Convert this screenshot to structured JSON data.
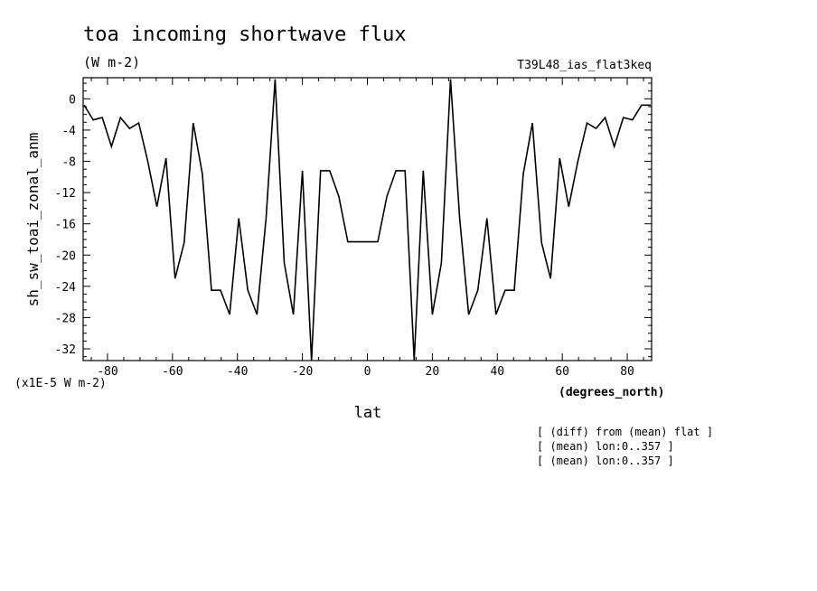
{
  "chart_data": {
    "type": "line",
    "title": "toa incoming shortwave flux",
    "units": "(W m-2)",
    "experiment": "T39L48_ias_flat3keq",
    "ylabel": "sh_sw_toai_zonal_anm",
    "yscale_note": "(x1E-5 W m-2)",
    "xlabel": "lat",
    "xunits": "(degrees_north)",
    "xlim": [
      -87.5,
      87.5
    ],
    "ylim": [
      -33.5,
      2.7
    ],
    "xticks": [
      -80,
      -60,
      -40,
      -20,
      0,
      20,
      40,
      60,
      80
    ],
    "yticks": [
      0,
      -4,
      -8,
      -12,
      -16,
      -20,
      -24,
      -28,
      -32
    ],
    "xtick_labels": [
      "-80",
      "-60",
      "-40",
      "-20",
      "0",
      "20",
      "40",
      "60",
      "80"
    ],
    "ytick_labels": [
      "0",
      "-4",
      "-8",
      "-12",
      "-16",
      "-20",
      "-24",
      "-28",
      "-32"
    ],
    "series": [
      {
        "x": [
          -87.2,
          -84.4,
          -81.6,
          -78.8,
          -76.0,
          -73.2,
          -70.4,
          -67.6,
          -64.8,
          -62.0,
          -59.2,
          -56.4,
          -53.6,
          -50.8,
          -48.0,
          -45.2,
          -42.4,
          -39.6,
          -36.8,
          -34.0,
          -31.2,
          -28.4,
          -25.6,
          -22.8,
          -20.0,
          -17.2,
          -14.4,
          -11.6,
          -8.8,
          -6.0,
          -3.2,
          -0.4,
          0.4,
          3.2,
          6.0,
          8.8,
          11.6,
          14.4,
          17.2,
          20.0,
          22.8,
          25.6,
          28.4,
          31.2,
          34.0,
          36.8,
          39.6,
          42.4,
          45.2,
          48.0,
          50.8,
          53.6,
          56.4,
          59.2,
          62.0,
          64.8,
          67.6,
          70.4,
          73.2,
          76.0,
          78.8,
          81.6,
          84.4,
          87.2
        ],
        "y": [
          -0.8,
          -2.7,
          -2.4,
          -6.1,
          -2.4,
          -3.8,
          -3.1,
          -8.0,
          -13.8,
          -7.6,
          -23.0,
          -18.4,
          -3.1,
          -9.6,
          -24.5,
          -24.5,
          -27.6,
          -15.3,
          -24.5,
          -27.6,
          -15.3,
          2.5,
          -21.0,
          -27.6,
          -9.2,
          -33.5,
          -9.2,
          -9.2,
          -12.5,
          -18.3,
          -18.3,
          -18.3,
          -18.3,
          -18.3,
          -12.5,
          -9.2,
          -9.2,
          -33.5,
          -9.2,
          -27.6,
          -21.0,
          2.5,
          -15.3,
          -27.6,
          -24.5,
          -15.3,
          -27.6,
          -24.5,
          -24.5,
          -9.6,
          -3.1,
          -18.4,
          -23.0,
          -7.6,
          -13.8,
          -8.0,
          -3.1,
          -3.8,
          -2.4,
          -6.1,
          -2.4,
          -2.7,
          -0.8,
          -0.8
        ]
      }
    ],
    "notes": [
      "[ (diff) from (mean) flat ]",
      "[ (mean) lon:0..357 ]",
      "[ (mean) lon:0..357 ]"
    ],
    "grid": false,
    "colors": {
      "line": "#000000",
      "background": "#ffffff"
    }
  }
}
